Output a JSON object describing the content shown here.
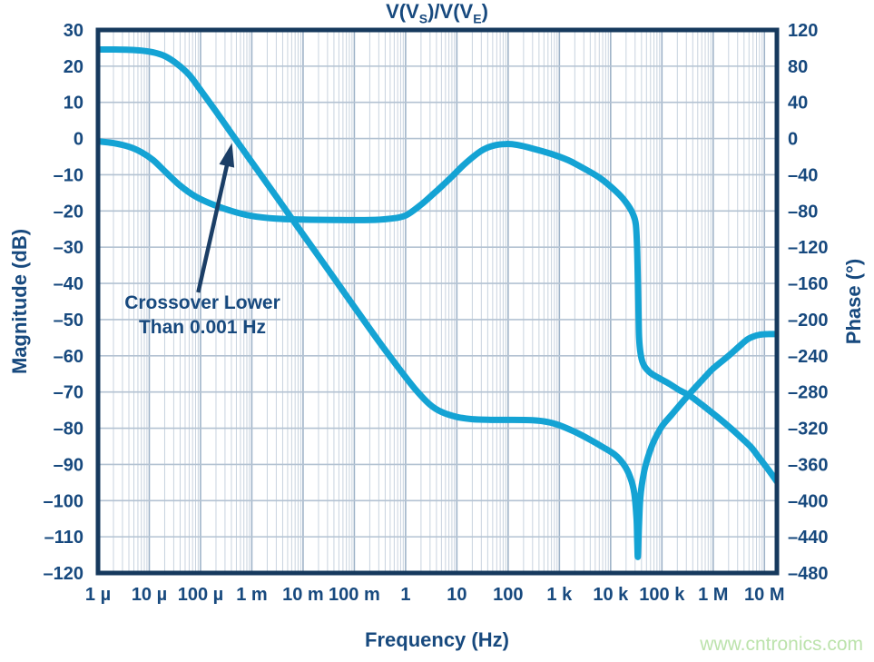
{
  "title": {
    "part1": "V(V",
    "sub1": "S",
    "part2": ")/V(V",
    "sub2": "E",
    "part3": ")"
  },
  "annotation": {
    "line1": "Crossover Lower",
    "line2": "Than 0.001 Hz"
  },
  "watermark": {
    "text": "www.cntronics.com"
  },
  "axes": {
    "x_label": "Frequency (Hz)",
    "y_left_label": "Magnitude (dB)",
    "y_right_label": "Phase (°)"
  },
  "colors": {
    "curve": "#14A3D4",
    "frame": "#16395D",
    "text": "#17497E",
    "arrow": "#1B3E66",
    "grid_minor": "#C8D3DF",
    "grid_major": "#9FB3C8",
    "grid_h": "#B3C2D2",
    "watermark": "#BCE3AC",
    "background": "#FFFFFF"
  },
  "chart_data": {
    "type": "line",
    "title": "V(VS)/V(VE)",
    "xlabel": "Frequency (Hz)",
    "x_scale": "log",
    "x_range": [
      1e-06,
      17500000.0
    ],
    "grid": true,
    "y_left": {
      "label": "Magnitude (dB)",
      "range": [
        -120,
        30
      ],
      "tick_step": 10
    },
    "y_right": {
      "label": "Phase (°)",
      "range": [
        -480,
        120
      ],
      "tick_step": 40
    },
    "y_left_tick_labels": [
      "30",
      "20",
      "10",
      "0",
      "–10",
      "–20",
      "–30",
      "–40",
      "–50",
      "–60",
      "–70",
      "–80",
      "–90",
      "–100",
      "–110",
      "–120"
    ],
    "y_right_tick_labels": [
      "120",
      "80",
      "40",
      "0",
      "–40",
      "–80",
      "–120",
      "–160",
      "–200",
      "–240",
      "–280",
      "–320",
      "–360",
      "–400",
      "–440",
      "–480"
    ],
    "x_ticks": [
      {
        "f": 1e-06,
        "label": "1 µ"
      },
      {
        "f": 1e-05,
        "label": "10 µ"
      },
      {
        "f": 0.0001,
        "label": "100 µ"
      },
      {
        "f": 0.001,
        "label": "1 m"
      },
      {
        "f": 0.01,
        "label": "10 m"
      },
      {
        "f": 0.1,
        "label": "100 m"
      },
      {
        "f": 1,
        "label": "1"
      },
      {
        "f": 10,
        "label": "10"
      },
      {
        "f": 100,
        "label": "100"
      },
      {
        "f": 1000.0,
        "label": "1 k"
      },
      {
        "f": 10000.0,
        "label": "10 k"
      },
      {
        "f": 100000.0,
        "label": "100 k"
      },
      {
        "f": 1000000.0,
        "label": "1 M"
      },
      {
        "f": 10000000.0,
        "label": "10 M"
      }
    ],
    "series": [
      {
        "name": "magnitude",
        "axis": "left",
        "unit": "dB",
        "color": "#14A3D4",
        "points": [
          [
            1e-06,
            24.6
          ],
          [
            2e-06,
            24.6
          ],
          [
            4e-06,
            24.5
          ],
          [
            7e-06,
            24.3
          ],
          [
            1.2e-05,
            23.8
          ],
          [
            2e-05,
            22.8
          ],
          [
            3.5e-05,
            20.6
          ],
          [
            6e-05,
            17.6
          ],
          [
            0.0001,
            13.4
          ],
          [
            0.0002,
            7.5
          ],
          [
            0.00042,
            1.0
          ],
          [
            0.001,
            -6.5
          ],
          [
            0.003,
            -16.0
          ],
          [
            0.01,
            -26.5
          ],
          [
            0.03,
            -36.0
          ],
          [
            0.1,
            -46.5
          ],
          [
            0.3,
            -56.0
          ],
          [
            0.7,
            -63.0
          ],
          [
            1.5,
            -69.0
          ],
          [
            3,
            -73.5
          ],
          [
            5,
            -75.5
          ],
          [
            10,
            -76.9
          ],
          [
            20,
            -77.5
          ],
          [
            50,
            -77.7
          ],
          [
            120,
            -77.7
          ],
          [
            300,
            -77.8
          ],
          [
            600,
            -78.3
          ],
          [
            1000.0,
            -79.2
          ],
          [
            2000.0,
            -81.0
          ],
          [
            4000.0,
            -83.2
          ],
          [
            7000.0,
            -85.2
          ],
          [
            12000.0,
            -87.3
          ],
          [
            18000.0,
            -90.0
          ],
          [
            24000.0,
            -93.5
          ],
          [
            29000.0,
            -98.0
          ],
          [
            32000.0,
            -105
          ],
          [
            33000.0,
            -111
          ],
          [
            34000.0,
            -115.5
          ],
          [
            35500.0,
            -108
          ],
          [
            38000.0,
            -99
          ],
          [
            45000.0,
            -92
          ],
          [
            55000.0,
            -87.5
          ],
          [
            70000.0,
            -83.5
          ],
          [
            100000.0,
            -79.5
          ],
          [
            150000.0,
            -76.5
          ],
          [
            250000.0,
            -72.8
          ],
          [
            400000.0,
            -69.5
          ],
          [
            700000.0,
            -65.8
          ],
          [
            1000000.0,
            -63.5
          ],
          [
            2000000.0,
            -60.0
          ],
          [
            3000000.0,
            -57.8
          ],
          [
            4500000.0,
            -55.6
          ],
          [
            6000000.0,
            -54.7
          ],
          [
            8000000.0,
            -54.2
          ],
          [
            12000000.0,
            -54.0
          ],
          [
            17500000.0,
            -54.0
          ]
        ]
      },
      {
        "name": "phase",
        "axis": "right",
        "unit": "deg",
        "color": "#14A3D4",
        "points": [
          [
            1e-06,
            -3
          ],
          [
            2e-06,
            -5
          ],
          [
            4e-06,
            -9
          ],
          [
            7e-06,
            -15
          ],
          [
            1.2e-05,
            -24
          ],
          [
            2e-05,
            -36
          ],
          [
            4e-05,
            -52
          ],
          [
            8e-05,
            -64
          ],
          [
            0.00016,
            -72
          ],
          [
            0.0004,
            -80
          ],
          [
            0.001,
            -85.5
          ],
          [
            0.003,
            -88.5
          ],
          [
            0.01,
            -89.5
          ],
          [
            0.05,
            -90
          ],
          [
            0.2,
            -90
          ],
          [
            0.5,
            -88.5
          ],
          [
            1,
            -85
          ],
          [
            2,
            -73
          ],
          [
            3.5,
            -61
          ],
          [
            5,
            -53
          ],
          [
            8,
            -42
          ],
          [
            15,
            -27
          ],
          [
            30,
            -13.5
          ],
          [
            50,
            -8
          ],
          [
            90,
            -6
          ],
          [
            150,
            -7
          ],
          [
            300,
            -11
          ],
          [
            700,
            -17
          ],
          [
            1500.0,
            -24
          ],
          [
            3000.0,
            -33
          ],
          [
            6000.0,
            -43
          ],
          [
            10000.0,
            -53
          ],
          [
            16000.0,
            -64
          ],
          [
            22000.0,
            -74
          ],
          [
            27000.0,
            -83
          ],
          [
            31000.0,
            -95
          ],
          [
            33000.0,
            -125
          ],
          [
            34500.0,
            -175
          ],
          [
            36000.0,
            -220
          ],
          [
            39000.0,
            -240
          ],
          [
            45000.0,
            -251
          ],
          [
            60000.0,
            -259
          ],
          [
            90000.0,
            -265
          ],
          [
            140000.0,
            -271
          ],
          [
            220000.0,
            -278
          ],
          [
            350000.0,
            -284
          ],
          [
            600000.0,
            -294
          ],
          [
            1300000.0,
            -309
          ],
          [
            2200000.0,
            -320
          ],
          [
            3600000.0,
            -331
          ],
          [
            5500000.0,
            -341
          ],
          [
            8000000.0,
            -353
          ],
          [
            12000000.0,
            -366
          ],
          [
            17500000.0,
            -379
          ]
        ]
      }
    ],
    "annotation_arrow": {
      "axis": "left",
      "tail": [
        9e-05,
        -42.5
      ],
      "tip": [
        0.00041,
        -1.2
      ]
    },
    "annotation_text": "Crossover Lower Than 0.001 Hz",
    "crossover_frequency_hz": 0.00042,
    "legend": "none"
  }
}
